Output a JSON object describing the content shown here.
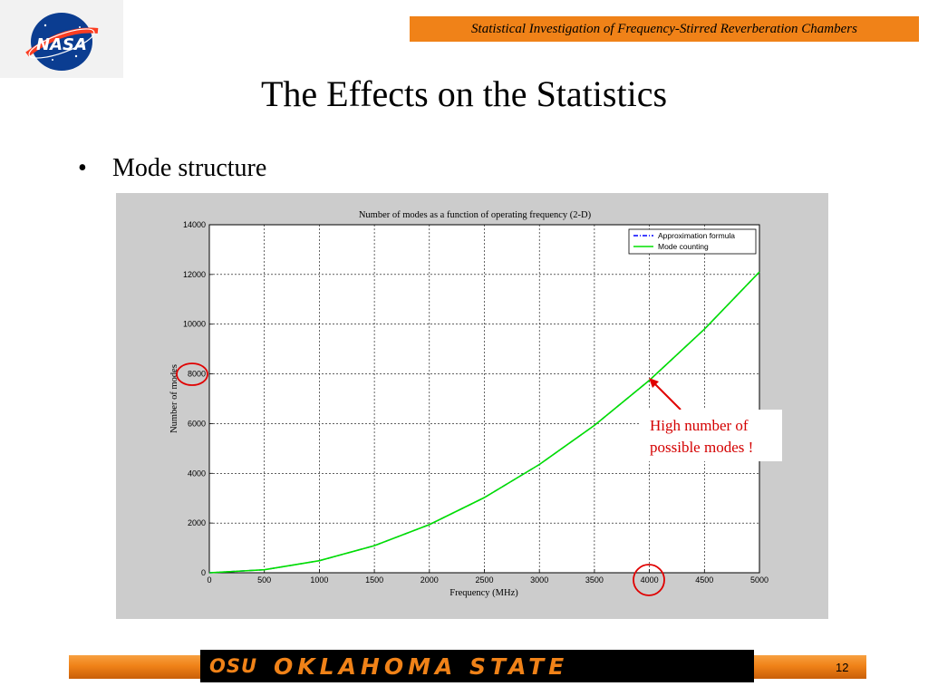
{
  "header": {
    "text": "Statistical Investigation of Frequency-Stirred Reverberation Chambers"
  },
  "logo": {
    "text": "NASA"
  },
  "slide": {
    "title": "The Effects on the Statistics",
    "bullet": "Mode structure"
  },
  "callout": {
    "line1": "High number of",
    "line2": "possible modes !"
  },
  "footer": {
    "osu": "OSU",
    "name": "OKLAHOMA STATE",
    "page": "12"
  },
  "colors": {
    "accent": "#f08218",
    "green": "#00e000",
    "blue": "#0000ff",
    "red": "#d40000"
  },
  "chart_data": {
    "type": "line",
    "title": "Number of modes as a function of operating frequency (2-D)",
    "xlabel": "Frequency (MHz)",
    "ylabel": "Number of modes",
    "xlim": [
      0,
      5000
    ],
    "ylim": [
      0,
      14000
    ],
    "xticks": [
      0,
      500,
      1000,
      1500,
      2000,
      2500,
      3000,
      3500,
      4000,
      4500,
      5000
    ],
    "yticks": [
      0,
      2000,
      4000,
      6000,
      8000,
      10000,
      12000,
      14000
    ],
    "grid": true,
    "legend_position": "top-right",
    "x": [
      0,
      500,
      1000,
      1500,
      2000,
      2500,
      3000,
      3500,
      4000,
      4500,
      5000
    ],
    "series": [
      {
        "name": "Approximation formula",
        "style": "dash-dot",
        "color": "#0000ff",
        "values": [
          0,
          121,
          484,
          1089,
          1936,
          3025,
          4356,
          5929,
          7744,
          9801,
          12100
        ]
      },
      {
        "name": "Mode counting",
        "style": "solid",
        "color": "#00e000",
        "values": [
          0,
          121,
          484,
          1089,
          1936,
          3025,
          4356,
          5929,
          7744,
          9801,
          12100
        ]
      }
    ],
    "highlighted": {
      "x": 4000,
      "y": 8000
    }
  }
}
